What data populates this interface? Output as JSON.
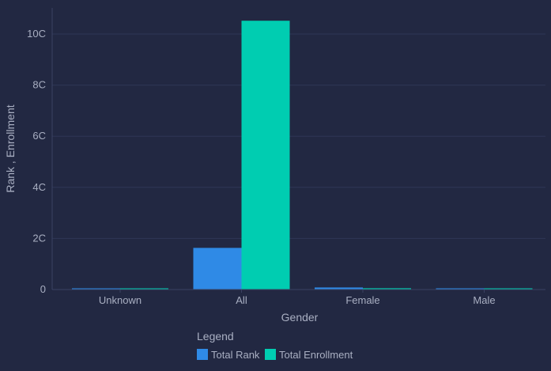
{
  "chart_data": {
    "type": "bar",
    "categories": [
      "Unknown",
      "All",
      "Female",
      "Male"
    ],
    "series": [
      {
        "name": "Total Rank",
        "values": [
          0,
          1630,
          80,
          30
        ]
      },
      {
        "name": "Total Enrollment",
        "values": [
          20,
          10520,
          50,
          20
        ]
      }
    ],
    "xlabel": "Gender",
    "ylabel": "Rank , Enrollment",
    "ylim": [
      0,
      10800
    ],
    "yticks": [
      0,
      2000,
      4000,
      6000,
      8000,
      10000
    ],
    "ytick_labels": [
      "0",
      "2C",
      "4C",
      "6C",
      "8C",
      "10C"
    ],
    "grid": true,
    "legend": {
      "title": "Legend",
      "position": "bottom"
    }
  },
  "colors": {
    "background": "#222842",
    "grid": "#2f3656",
    "axis": "#3a4263",
    "series": [
      "#2f8ae6",
      "#00cdb1"
    ]
  }
}
